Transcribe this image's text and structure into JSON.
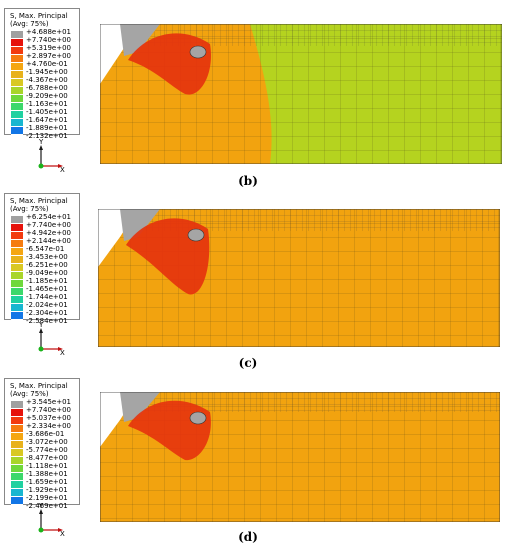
{
  "scale_colors": [
    "#a0a0a0",
    "#e6120b",
    "#f23a0f",
    "#f57c10",
    "#f5a612",
    "#e8b21c",
    "#d9c822",
    "#a9d52a",
    "#6fd83c",
    "#3cd86b",
    "#1fd1a0",
    "#17b6d0",
    "#1276e6",
    "#0b3bd8",
    "#0718c8"
  ],
  "panels": [
    {
      "title_line1": "S, Max. Principal",
      "title_line2": "(Avg: 75%)",
      "ticks": [
        "+4.688e+01",
        "+7.740e+00",
        "+5.319e+00",
        "+2.897e+00",
        "+4.760e-01",
        "-1.945e+00",
        "-4.367e+00",
        "-6.788e+00",
        "-9.209e+00",
        "-1.163e+01",
        "-1.405e+01",
        "-1.647e+01",
        "-1.889e+01",
        "-2.132e+01"
      ],
      "axis_y": "Y",
      "axis_x": "X",
      "caption_letter": "b",
      "caption": "(b)"
    },
    {
      "title_line1": "S, Max. Principal",
      "title_line2": "(Avg: 75%)",
      "ticks": [
        "+6.254e+01",
        "+7.740e+00",
        "+4.942e+00",
        "+2.144e+00",
        "-6.547e-01",
        "-3.453e+00",
        "-6.251e+00",
        "-9.049e+00",
        "-1.185e+01",
        "-1.465e+01",
        "-1.744e+01",
        "-2.024e+01",
        "-2.304e+01",
        "-2.584e+01"
      ],
      "axis_y": "Y",
      "axis_x": "X",
      "caption": "(c)"
    },
    {
      "title_line1": "S, Max. Principal",
      "title_line2": "(Avg: 75%)",
      "ticks": [
        "+3.545e+01",
        "+7.740e+00",
        "+5.037e+00",
        "+2.334e+00",
        "-3.686e-01",
        "-3.072e+00",
        "-5.774e+00",
        "-8.477e+00",
        "-1.118e+01",
        "-1.388e+01",
        "-1.659e+01",
        "-1.929e+01",
        "-2.199e+01",
        "-2.469e+01"
      ],
      "axis_y": "Y",
      "axis_x": "X",
      "caption": "(d)"
    }
  ],
  "colors": {
    "orange": "#f2a30f",
    "lime": "#b5d31f",
    "red": "#e5330d",
    "gray": "#a5a5a5",
    "mesh": "#4a3a1a"
  }
}
